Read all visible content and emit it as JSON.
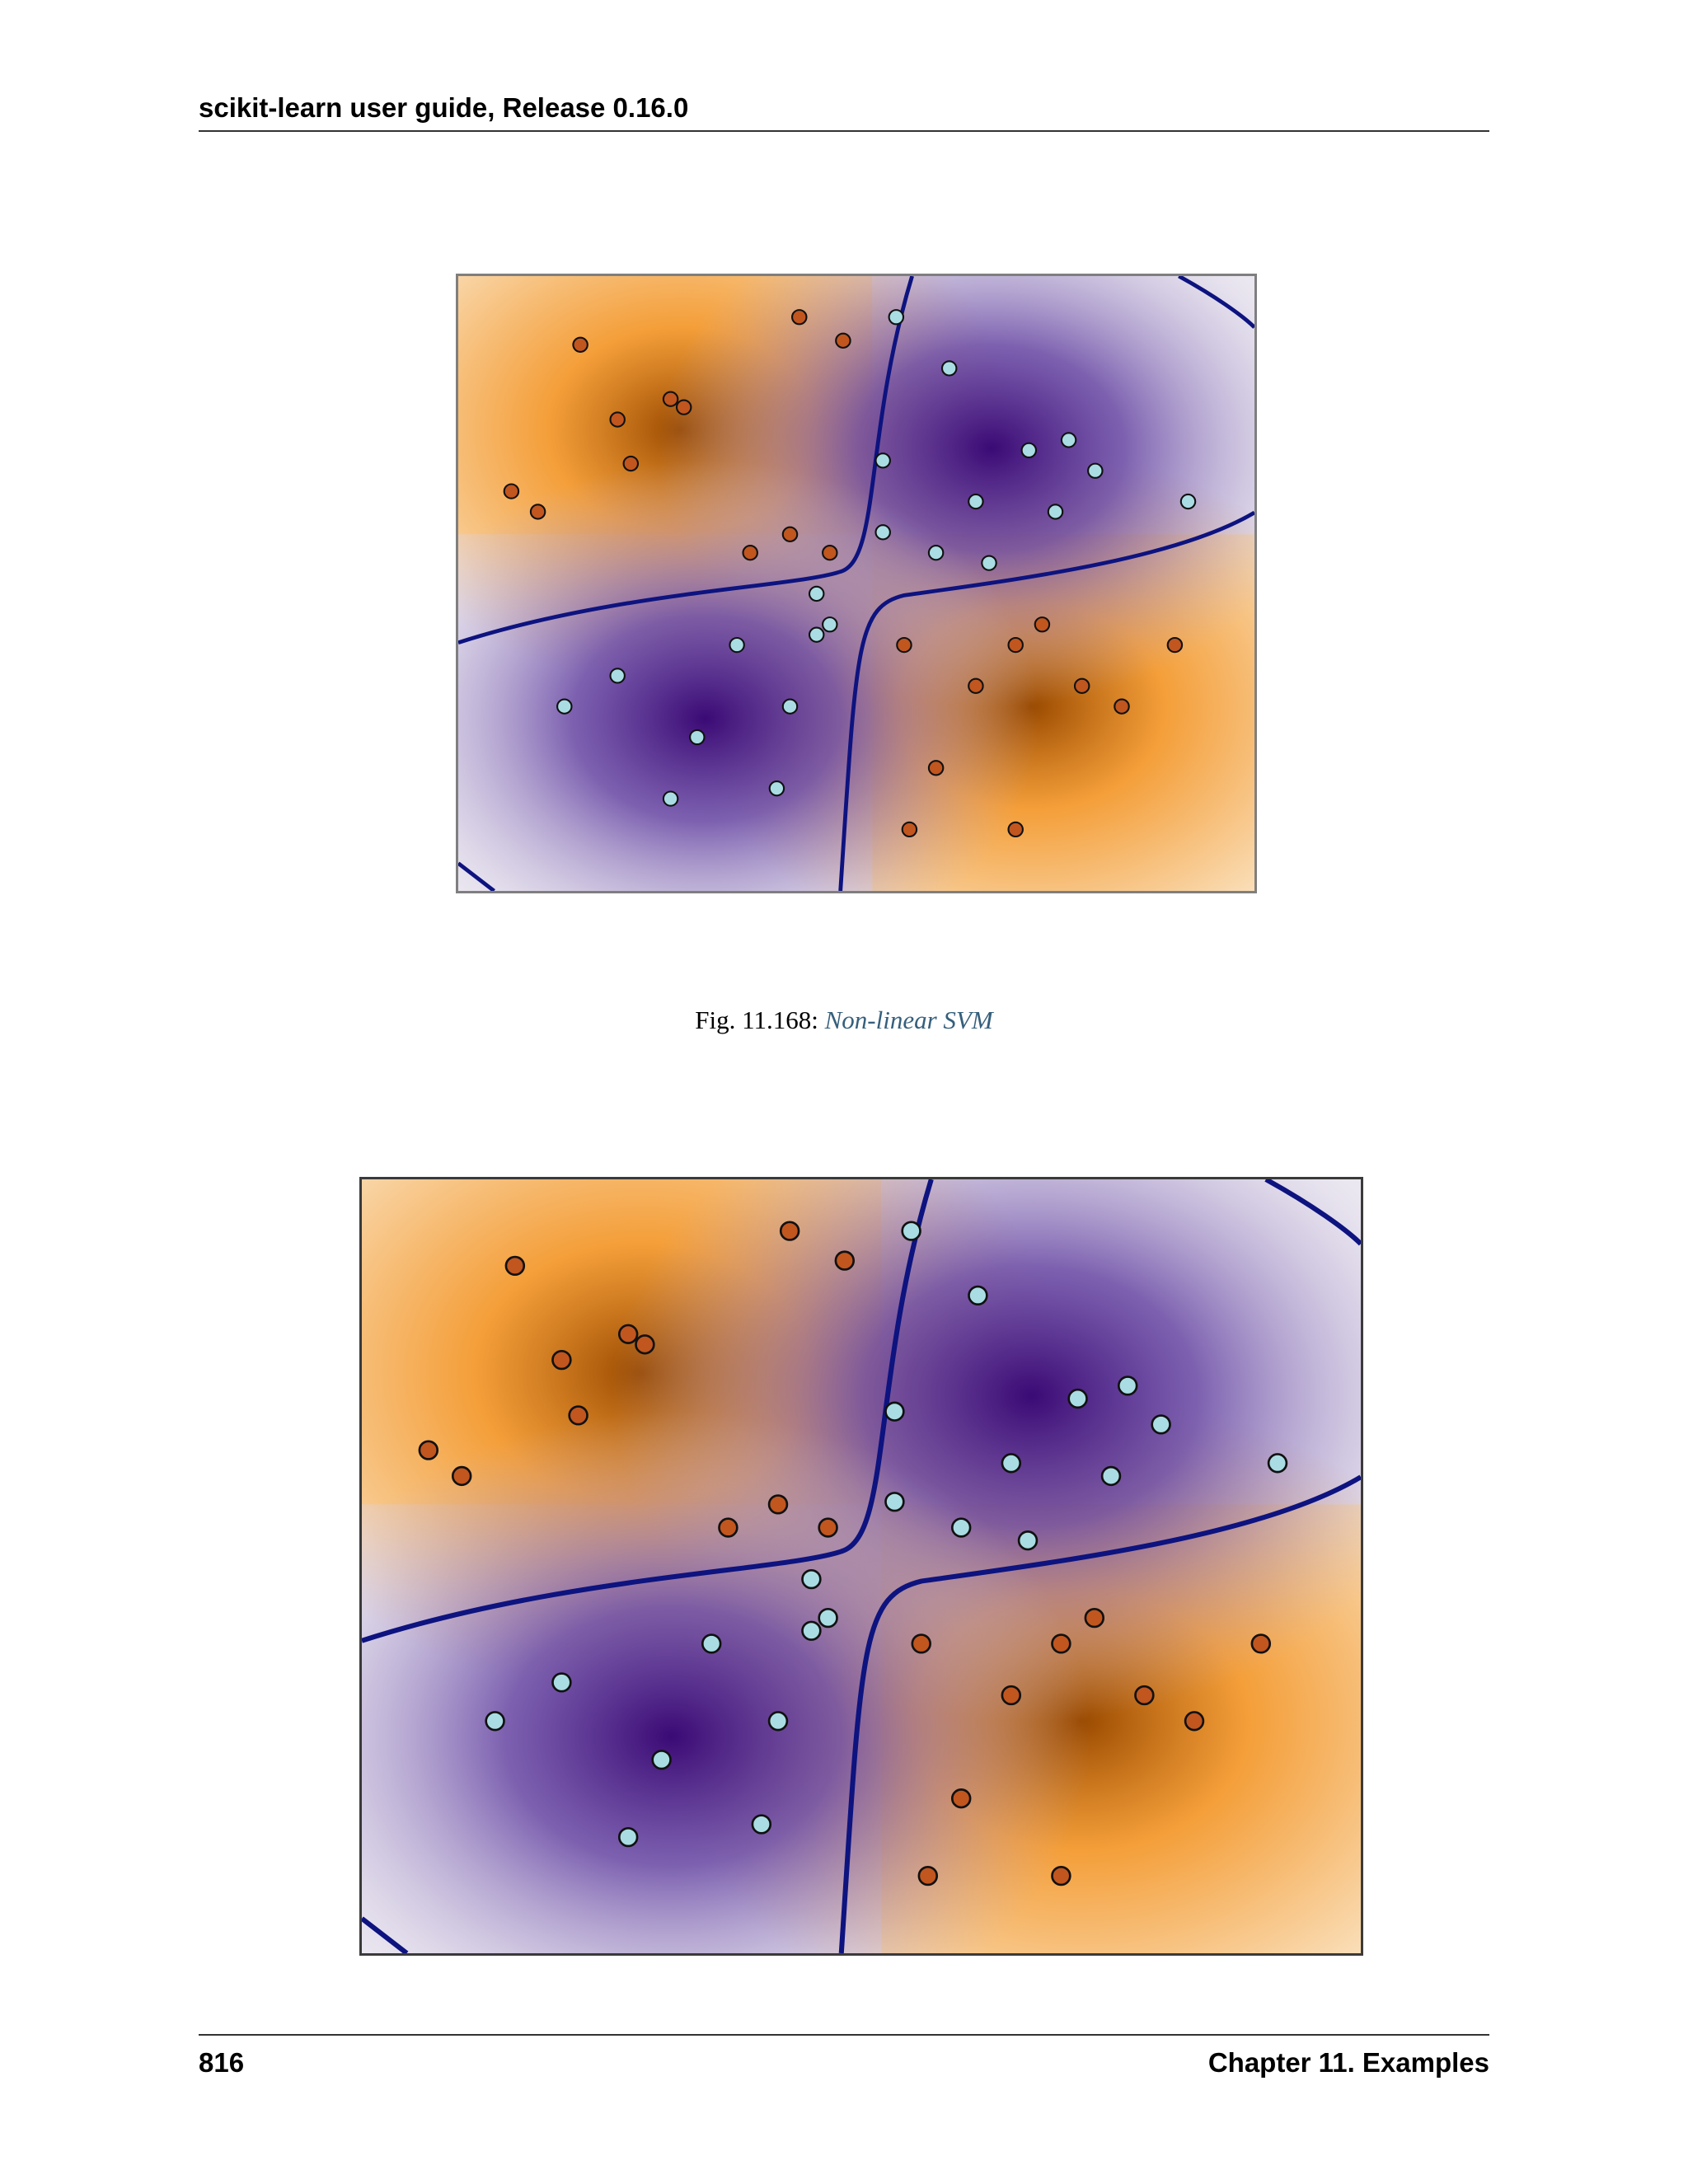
{
  "header": {
    "title": "scikit-learn user guide, Release 0.16.0"
  },
  "figure1": {
    "caption_prefix": "Fig. 11.168: ",
    "caption_link": "Non-linear SVM"
  },
  "footer": {
    "page_number": "816",
    "chapter": "Chapter 11.  Examples"
  },
  "colors": {
    "orange_dark": "#9a4a00",
    "orange": "#f39322",
    "purple_dark": "#3b0a75",
    "boundary": "#0d137f",
    "point_orange": "#c1561f",
    "point_blue": "#a9dde3"
  },
  "chart_data": [
    {
      "type": "scatter",
      "title": "",
      "xlabel": "",
      "ylabel": "",
      "xlim": [
        -3,
        3
      ],
      "ylim": [
        -3,
        3
      ],
      "grid": false,
      "legend": "none",
      "background": "decision function heatmap (PuOr colormap), XOR pattern",
      "series": [
        {
          "points": [
            [
              -2.08,
              2.33
            ],
            [
              -0.43,
              2.6
            ],
            [
              -0.1,
              2.37
            ],
            [
              -1.7,
              1.17
            ],
            [
              -1.3,
              1.72
            ],
            [
              -0.5,
              0.48
            ],
            [
              -1.4,
              1.8
            ],
            [
              -1.8,
              1.6
            ],
            [
              0.36,
              -0.6
            ],
            [
              1.2,
              -0.6
            ],
            [
              0.9,
              -1.0
            ],
            [
              1.2,
              -2.4
            ],
            [
              0.4,
              -2.4
            ],
            [
              2.4,
              -0.6
            ],
            [
              2.0,
              -1.2
            ],
            [
              -0.2,
              0.3
            ],
            [
              -0.8,
              0.3
            ],
            [
              -2.6,
              0.9
            ],
            [
              -2.4,
              0.7
            ],
            [
              1.4,
              -0.4
            ],
            [
              0.6,
              -1.8
            ],
            [
              1.7,
              -1.0
            ]
          ]
        },
        {
          "points": [
            [
              0.3,
              2.6
            ],
            [
              0.7,
              2.1
            ],
            [
              1.3,
              1.3
            ],
            [
              1.6,
              1.4
            ],
            [
              -0.3,
              -0.5
            ],
            [
              -1.2,
              -1.5
            ],
            [
              -0.9,
              -0.6
            ],
            [
              -0.5,
              -1.2
            ],
            [
              -0.2,
              -0.4
            ],
            [
              1.5,
              0.7
            ],
            [
              1.0,
              0.2
            ],
            [
              -0.6,
              -2.0
            ],
            [
              -1.4,
              -2.1
            ],
            [
              -2.2,
              -1.2
            ],
            [
              0.2,
              1.2
            ],
            [
              1.8,
              1.1
            ],
            [
              0.9,
              0.8
            ],
            [
              -1.8,
              -0.9
            ],
            [
              0.2,
              0.5
            ],
            [
              0.6,
              0.3
            ],
            [
              -0.3,
              -0.1
            ],
            [
              2.5,
              0.8
            ]
          ]
        }
      ]
    },
    {
      "type": "scatter",
      "title": "",
      "xlabel": "",
      "ylabel": "",
      "xlim": [
        -3,
        3
      ],
      "ylim": [
        -3,
        3
      ],
      "grid": false,
      "legend": "none",
      "background": "decision function heatmap (PuOr colormap), XOR pattern",
      "series": [
        {
          "points": [
            [
              -2.08,
              2.33
            ],
            [
              -0.43,
              2.6
            ],
            [
              -0.1,
              2.37
            ],
            [
              -1.7,
              1.17
            ],
            [
              -1.3,
              1.72
            ],
            [
              -0.5,
              0.48
            ],
            [
              -1.4,
              1.8
            ],
            [
              -1.8,
              1.6
            ],
            [
              0.36,
              -0.6
            ],
            [
              1.2,
              -0.6
            ],
            [
              0.9,
              -1.0
            ],
            [
              1.2,
              -2.4
            ],
            [
              0.4,
              -2.4
            ],
            [
              2.4,
              -0.6
            ],
            [
              2.0,
              -1.2
            ],
            [
              -0.2,
              0.3
            ],
            [
              -0.8,
              0.3
            ],
            [
              -2.6,
              0.9
            ],
            [
              -2.4,
              0.7
            ],
            [
              1.4,
              -0.4
            ],
            [
              0.6,
              -1.8
            ],
            [
              1.7,
              -1.0
            ]
          ]
        },
        {
          "points": [
            [
              0.3,
              2.6
            ],
            [
              0.7,
              2.1
            ],
            [
              1.3,
              1.3
            ],
            [
              1.6,
              1.4
            ],
            [
              -0.3,
              -0.5
            ],
            [
              -1.2,
              -1.5
            ],
            [
              -0.9,
              -0.6
            ],
            [
              -0.5,
              -1.2
            ],
            [
              -0.2,
              -0.4
            ],
            [
              1.5,
              0.7
            ],
            [
              1.0,
              0.2
            ],
            [
              -0.6,
              -2.0
            ],
            [
              -1.4,
              -2.1
            ],
            [
              -2.2,
              -1.2
            ],
            [
              0.2,
              1.2
            ],
            [
              1.8,
              1.1
            ],
            [
              0.9,
              0.8
            ],
            [
              -1.8,
              -0.9
            ],
            [
              0.2,
              0.5
            ],
            [
              0.6,
              0.3
            ],
            [
              -0.3,
              -0.1
            ],
            [
              2.5,
              0.8
            ]
          ]
        }
      ]
    }
  ]
}
